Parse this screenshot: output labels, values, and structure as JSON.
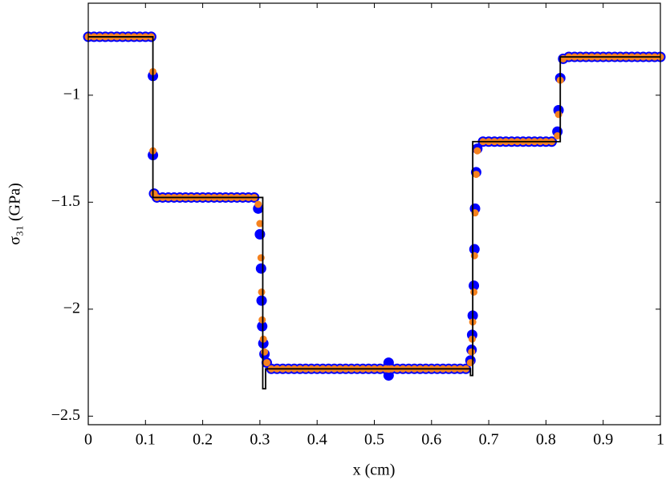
{
  "chart_data": {
    "type": "scatter",
    "xlabel": "x (cm)",
    "ylabel": "σ₃₁ (GPa)",
    "xlim": [
      0,
      1
    ],
    "ylim": [
      -2.54,
      -0.57
    ],
    "xticks": [
      0,
      0.1,
      0.2,
      0.3,
      0.4,
      0.5,
      0.6,
      0.7,
      0.8,
      0.9,
      1
    ],
    "yticks": [
      {
        "value": -2.5,
        "label": "−2.5"
      },
      {
        "value": -2,
        "label": "−2"
      },
      {
        "value": -1.5,
        "label": "−1.5"
      },
      {
        "value": -1,
        "label": "−1"
      }
    ],
    "x": [
      0,
      0.01,
      0.02,
      0.03,
      0.04,
      0.05,
      0.06,
      0.07,
      0.08,
      0.09,
      0.1,
      0.11,
      0.113,
      0.113,
      0.115,
      0.12,
      0.13,
      0.14,
      0.15,
      0.16,
      0.17,
      0.18,
      0.19,
      0.2,
      0.21,
      0.22,
      0.23,
      0.24,
      0.25,
      0.26,
      0.27,
      0.28,
      0.29,
      0.297,
      0.3,
      0.302,
      0.303,
      0.304,
      0.306,
      0.308,
      0.312,
      0.32,
      0.33,
      0.34,
      0.35,
      0.36,
      0.37,
      0.38,
      0.39,
      0.4,
      0.41,
      0.42,
      0.43,
      0.44,
      0.45,
      0.46,
      0.47,
      0.48,
      0.49,
      0.5,
      0.51,
      0.52,
      0.525,
      0.525,
      0.53,
      0.54,
      0.55,
      0.56,
      0.57,
      0.58,
      0.59,
      0.6,
      0.61,
      0.62,
      0.63,
      0.64,
      0.65,
      0.66,
      0.668,
      0.67,
      0.671,
      0.672,
      0.674,
      0.675,
      0.676,
      0.678,
      0.68,
      0.69,
      0.7,
      0.71,
      0.72,
      0.73,
      0.74,
      0.75,
      0.76,
      0.77,
      0.78,
      0.79,
      0.8,
      0.81,
      0.82,
      0.822,
      0.825,
      0.83,
      0.84,
      0.85,
      0.86,
      0.87,
      0.88,
      0.89,
      0.9,
      0.91,
      0.92,
      0.93,
      0.94,
      0.95,
      0.96,
      0.97,
      0.98,
      0.99,
      1
    ],
    "series": [
      {
        "color": "#0000ff",
        "values": [
          -0.727,
          -0.727,
          -0.727,
          -0.727,
          -0.727,
          -0.727,
          -0.727,
          -0.727,
          -0.727,
          -0.727,
          -0.727,
          -0.727,
          -0.91,
          -1.28,
          -1.46,
          -1.478,
          -1.478,
          -1.478,
          -1.478,
          -1.478,
          -1.478,
          -1.478,
          -1.478,
          -1.478,
          -1.478,
          -1.478,
          -1.478,
          -1.478,
          -1.478,
          -1.478,
          -1.478,
          -1.478,
          -1.478,
          -1.53,
          -1.65,
          -1.81,
          -1.96,
          -2.08,
          -2.16,
          -2.21,
          -2.25,
          -2.279,
          -2.279,
          -2.279,
          -2.279,
          -2.279,
          -2.279,
          -2.279,
          -2.279,
          -2.279,
          -2.279,
          -2.279,
          -2.279,
          -2.279,
          -2.279,
          -2.279,
          -2.279,
          -2.279,
          -2.279,
          -2.279,
          -2.279,
          -2.279,
          -2.25,
          -2.31,
          -2.279,
          -2.279,
          -2.279,
          -2.279,
          -2.279,
          -2.279,
          -2.279,
          -2.279,
          -2.279,
          -2.279,
          -2.279,
          -2.279,
          -2.279,
          -2.279,
          -2.24,
          -2.19,
          -2.12,
          -2.03,
          -1.89,
          -1.72,
          -1.53,
          -1.36,
          -1.25,
          -1.217,
          -1.217,
          -1.217,
          -1.217,
          -1.217,
          -1.217,
          -1.217,
          -1.217,
          -1.217,
          -1.217,
          -1.217,
          -1.217,
          -1.217,
          -1.17,
          -1.07,
          -0.92,
          -0.83,
          -0.821,
          -0.821,
          -0.821,
          -0.821,
          -0.821,
          -0.821,
          -0.821,
          -0.821,
          -0.821,
          -0.821,
          -0.821,
          -0.821,
          -0.821,
          -0.821,
          -0.821,
          -0.821,
          -0.821
        ]
      },
      {
        "color": "#f5821f",
        "values": [
          -0.727,
          -0.727,
          -0.727,
          -0.727,
          -0.727,
          -0.727,
          -0.727,
          -0.727,
          -0.727,
          -0.727,
          -0.727,
          -0.727,
          -0.89,
          -1.26,
          -1.46,
          -1.478,
          -1.478,
          -1.478,
          -1.478,
          -1.478,
          -1.478,
          -1.478,
          -1.478,
          -1.478,
          -1.478,
          -1.478,
          -1.478,
          -1.478,
          -1.478,
          -1.478,
          -1.478,
          -1.478,
          -1.478,
          -1.51,
          -1.6,
          -1.76,
          -1.92,
          -2.05,
          -2.14,
          -2.2,
          -2.25,
          -2.279,
          -2.279,
          -2.279,
          -2.279,
          -2.279,
          -2.279,
          -2.279,
          -2.279,
          -2.279,
          -2.279,
          -2.279,
          -2.279,
          -2.279,
          -2.279,
          -2.279,
          -2.279,
          -2.279,
          -2.279,
          -2.279,
          -2.279,
          -2.279,
          -2.28,
          -2.28,
          -2.279,
          -2.279,
          -2.279,
          -2.279,
          -2.279,
          -2.279,
          -2.279,
          -2.279,
          -2.279,
          -2.279,
          -2.279,
          -2.279,
          -2.279,
          -2.279,
          -2.25,
          -2.2,
          -2.14,
          -2.06,
          -1.92,
          -1.75,
          -1.55,
          -1.37,
          -1.26,
          -1.217,
          -1.217,
          -1.217,
          -1.217,
          -1.217,
          -1.217,
          -1.217,
          -1.217,
          -1.217,
          -1.217,
          -1.217,
          -1.217,
          -1.217,
          -1.19,
          -1.09,
          -0.93,
          -0.83,
          -0.821,
          -0.821,
          -0.821,
          -0.821,
          -0.821,
          -0.821,
          -0.821,
          -0.821,
          -0.821,
          -0.821,
          -0.821,
          -0.821,
          -0.821,
          -0.821,
          -0.821,
          -0.821,
          -0.821
        ]
      }
    ],
    "exact": {
      "color": "#000000",
      "x": [
        0,
        0.113,
        0.113,
        0.305,
        0.305,
        0.31,
        0.31,
        0.668,
        0.668,
        0.672,
        0.672,
        0.825,
        0.825,
        1
      ],
      "values": [
        -0.727,
        -0.727,
        -1.478,
        -1.478,
        -2.372,
        -2.372,
        -2.279,
        -2.279,
        -2.31,
        -2.31,
        -1.217,
        -1.217,
        -0.821,
        -0.821
      ]
    }
  }
}
